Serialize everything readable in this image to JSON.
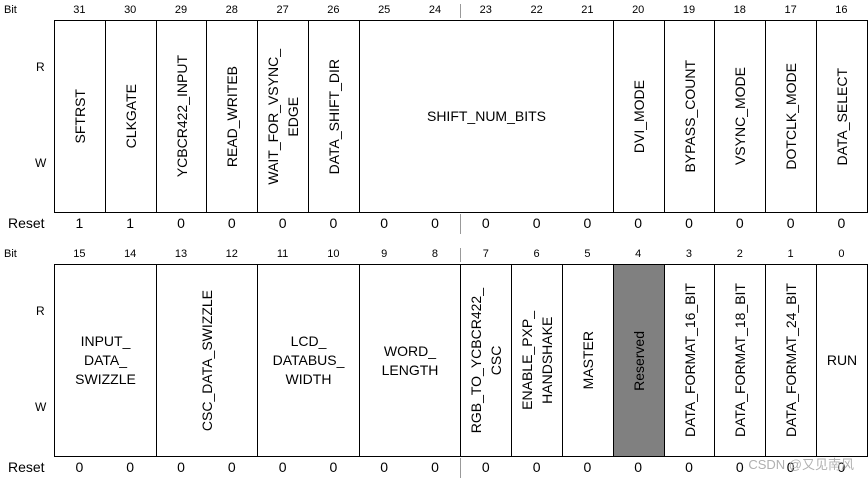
{
  "labels": {
    "bit": "Bit",
    "r": "R",
    "w": "W",
    "reset": "Reset"
  },
  "top": {
    "bits": [
      "31",
      "30",
      "29",
      "28",
      "27",
      "26",
      "25",
      "24",
      "23",
      "22",
      "21",
      "20",
      "19",
      "18",
      "17",
      "16"
    ],
    "fields": [
      {
        "name": "SFTRST",
        "span": 1,
        "orient": "v"
      },
      {
        "name": "CLKGATE",
        "span": 1,
        "orient": "v"
      },
      {
        "name": "YCBCR422_INPUT",
        "span": 1,
        "orient": "v"
      },
      {
        "name": "READ_WRITEB",
        "span": 1,
        "orient": "v"
      },
      {
        "name": "WAIT_FOR_VSYNC_\nEDGE",
        "span": 1,
        "orient": "v"
      },
      {
        "name": "DATA_SHIFT_DIR",
        "span": 1,
        "orient": "v"
      },
      {
        "name": "SHIFT_NUM_BITS",
        "span": 5,
        "orient": "h"
      },
      {
        "name": "DVI_MODE",
        "span": 1,
        "orient": "v"
      },
      {
        "name": "BYPASS_COUNT",
        "span": 1,
        "orient": "v"
      },
      {
        "name": "VSYNC_MODE",
        "span": 1,
        "orient": "v"
      },
      {
        "name": "DOTCLK_MODE",
        "span": 1,
        "orient": "v"
      },
      {
        "name": "DATA_SELECT",
        "span": 1,
        "orient": "v"
      }
    ],
    "reset": [
      "1",
      "1",
      "0",
      "0",
      "0",
      "0",
      "0",
      "0",
      "0",
      "0",
      "0",
      "0",
      "0",
      "0",
      "0",
      "0"
    ]
  },
  "bottom": {
    "bits": [
      "15",
      "14",
      "13",
      "12",
      "11",
      "10",
      "9",
      "8",
      "7",
      "6",
      "5",
      "4",
      "3",
      "2",
      "1",
      "0"
    ],
    "fields": [
      {
        "name": "INPUT_\nDATA_\nSWIZZLE",
        "span": 2,
        "orient": "h"
      },
      {
        "name": "CSC_DATA_SWIZZLE",
        "span": 2,
        "orient": "v"
      },
      {
        "name": "LCD_\nDATABUS_\nWIDTH",
        "span": 2,
        "orient": "h"
      },
      {
        "name": "WORD_\nLENGTH",
        "span": 2,
        "orient": "h"
      },
      {
        "name": "RGB_TO_YCBCR422_\nCSC",
        "span": 1,
        "orient": "v"
      },
      {
        "name": "ENABLE_PXP_\nHANDSHAKE",
        "span": 1,
        "orient": "v"
      },
      {
        "name": "MASTER",
        "span": 1,
        "orient": "v"
      },
      {
        "name": "Reserved",
        "span": 1,
        "orient": "v",
        "reserved": true
      },
      {
        "name": "DATA_FORMAT_16_BIT",
        "span": 1,
        "orient": "v"
      },
      {
        "name": "DATA_FORMAT_18_BIT",
        "span": 1,
        "orient": "v"
      },
      {
        "name": "DATA_FORMAT_24_BIT",
        "span": 1,
        "orient": "v"
      },
      {
        "name": "RUN",
        "span": 1,
        "orient": "h"
      }
    ],
    "reset": [
      "0",
      "0",
      "0",
      "0",
      "0",
      "0",
      "0",
      "0",
      "0",
      "0",
      "0",
      "0",
      "0",
      "0",
      "0",
      "0"
    ]
  },
  "watermark": "CSDN @又见南风",
  "colors": {
    "reserved": "#808080",
    "border": "#000000"
  }
}
